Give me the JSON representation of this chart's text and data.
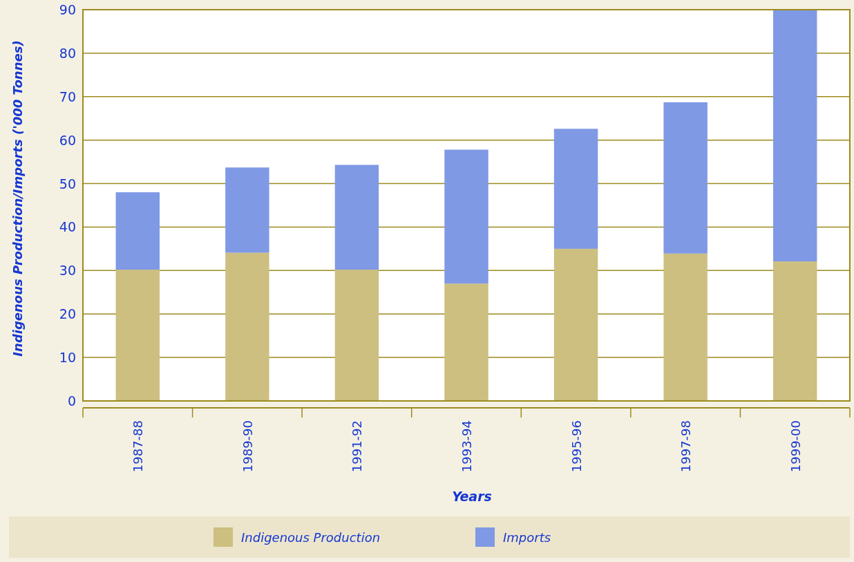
{
  "chart_data": {
    "type": "bar",
    "stacked": true,
    "xlabel": "Years",
    "ylabel": "Indigenous Production/Imports ('000 Tonnes)",
    "categories": [
      "1987-88",
      "1989-90",
      "1991-92",
      "1993-94",
      "1995-96",
      "1997-98",
      "1999-00"
    ],
    "series": [
      {
        "name": "Indigenous Production",
        "color": "#ccbf80",
        "values": [
          30.2,
          34.1,
          30.2,
          27.0,
          35.0,
          33.9,
          32.1
        ]
      },
      {
        "name": "Imports",
        "color": "#7f99e5",
        "values": [
          17.8,
          19.6,
          24.1,
          30.8,
          27.6,
          34.8,
          57.9
        ]
      }
    ],
    "ylim": [
      0,
      90
    ],
    "yticks": [
      0,
      10,
      20,
      30,
      40,
      50,
      60,
      70,
      80,
      90
    ],
    "grid": "y",
    "legend": "bottom"
  }
}
